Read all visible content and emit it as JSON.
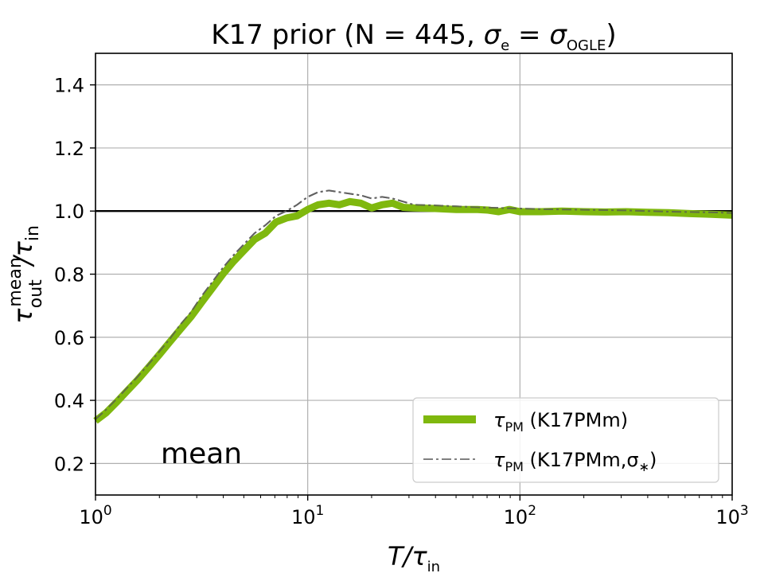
{
  "chart_data": {
    "type": "line",
    "title": {
      "prefix": "K17 prior (N = 445, ",
      "sym_left": "σ",
      "sub_left": "e",
      "equals": " = ",
      "sym_right": "σ",
      "sub_right": "OGLE",
      "suffix": ")"
    },
    "xscale": "log",
    "xlim": [
      1,
      1000
    ],
    "ylim": [
      0.1,
      1.5
    ],
    "grid": true,
    "xticks": [
      {
        "value": 1,
        "base": "10",
        "exp": "0"
      },
      {
        "value": 10,
        "base": "10",
        "exp": "1"
      },
      {
        "value": 100,
        "base": "10",
        "exp": "2"
      },
      {
        "value": 1000,
        "base": "10",
        "exp": "3"
      }
    ],
    "yticks": [
      {
        "value": 0.2,
        "label": "0.2"
      },
      {
        "value": 0.4,
        "label": "0.4"
      },
      {
        "value": 0.6,
        "label": "0.6"
      },
      {
        "value": 0.8,
        "label": "0.8"
      },
      {
        "value": 1.0,
        "label": "1.0"
      },
      {
        "value": 1.2,
        "label": "1.2"
      },
      {
        "value": 1.4,
        "label": "1.4"
      }
    ],
    "xlabel": {
      "main": "T/τ",
      "sub": "in"
    },
    "ylabel": {
      "main": "τ",
      "sup": "mean",
      "sub": "out",
      "rest": "/τ",
      "sub2": "in"
    },
    "reference_line": {
      "y": 1.0,
      "color": "#000000"
    },
    "annotation": "mean",
    "legend": {
      "position": "lower-right",
      "entries": [
        {
          "sym": "τ",
          "sub": "PM",
          "text": " (K17PMm)"
        },
        {
          "sym": "τ",
          "sub": "PM",
          "text": " (K17PMm,σ",
          "sub2": "∗",
          "close": ")"
        }
      ]
    },
    "series": [
      {
        "name": "τPM (K17PMm)",
        "color": "#7fb80e",
        "style": "solid",
        "x": [
          1.0,
          1.12,
          1.26,
          1.41,
          1.58,
          1.78,
          2.0,
          2.24,
          2.51,
          2.82,
          3.16,
          3.55,
          3.98,
          4.47,
          5.01,
          5.62,
          6.31,
          7.08,
          7.94,
          8.91,
          10.0,
          11.2,
          12.6,
          14.1,
          15.8,
          17.8,
          20.0,
          22.4,
          25.1,
          28.2,
          31.6,
          39.8,
          50.1,
          63.1,
          70.8,
          79.4,
          89.1,
          100,
          126,
          158,
          200,
          251,
          316,
          398,
          501,
          631,
          794,
          1000
        ],
        "y": [
          0.335,
          0.36,
          0.395,
          0.43,
          0.465,
          0.505,
          0.545,
          0.585,
          0.625,
          0.665,
          0.71,
          0.755,
          0.8,
          0.84,
          0.875,
          0.91,
          0.93,
          0.965,
          0.978,
          0.985,
          1.005,
          1.02,
          1.025,
          1.02,
          1.03,
          1.025,
          1.01,
          1.02,
          1.025,
          1.012,
          1.01,
          1.008,
          1.005,
          1.005,
          1.003,
          0.998,
          1.005,
          0.998,
          0.998,
          1.0,
          0.998,
          0.997,
          0.998,
          0.996,
          0.995,
          0.992,
          0.99,
          0.987
        ]
      },
      {
        "name": "τPM (K17PMm,σ∗)",
        "color": "#808080",
        "style": "dashdot",
        "x": [
          1.0,
          1.12,
          1.26,
          1.41,
          1.58,
          1.78,
          2.0,
          2.24,
          2.51,
          2.82,
          3.16,
          3.55,
          3.98,
          4.47,
          5.01,
          5.62,
          6.31,
          7.08,
          7.94,
          8.91,
          10.0,
          11.2,
          12.6,
          14.1,
          15.8,
          17.8,
          20.0,
          22.4,
          25.1,
          28.2,
          31.6,
          39.8,
          50.1,
          63.1,
          79.4,
          100,
          126,
          158,
          200,
          251,
          316,
          398,
          501,
          631,
          794,
          1000
        ],
        "y": [
          0.34,
          0.37,
          0.405,
          0.44,
          0.475,
          0.515,
          0.555,
          0.595,
          0.64,
          0.68,
          0.73,
          0.775,
          0.82,
          0.86,
          0.895,
          0.93,
          0.955,
          0.985,
          1.0,
          1.02,
          1.045,
          1.06,
          1.065,
          1.06,
          1.055,
          1.05,
          1.04,
          1.045,
          1.04,
          1.03,
          1.02,
          1.018,
          1.015,
          1.012,
          1.01,
          1.008,
          1.006,
          1.005,
          1.004,
          1.003,
          1.002,
          1.0,
          0.998,
          0.997,
          0.996,
          0.994
        ]
      }
    ]
  }
}
